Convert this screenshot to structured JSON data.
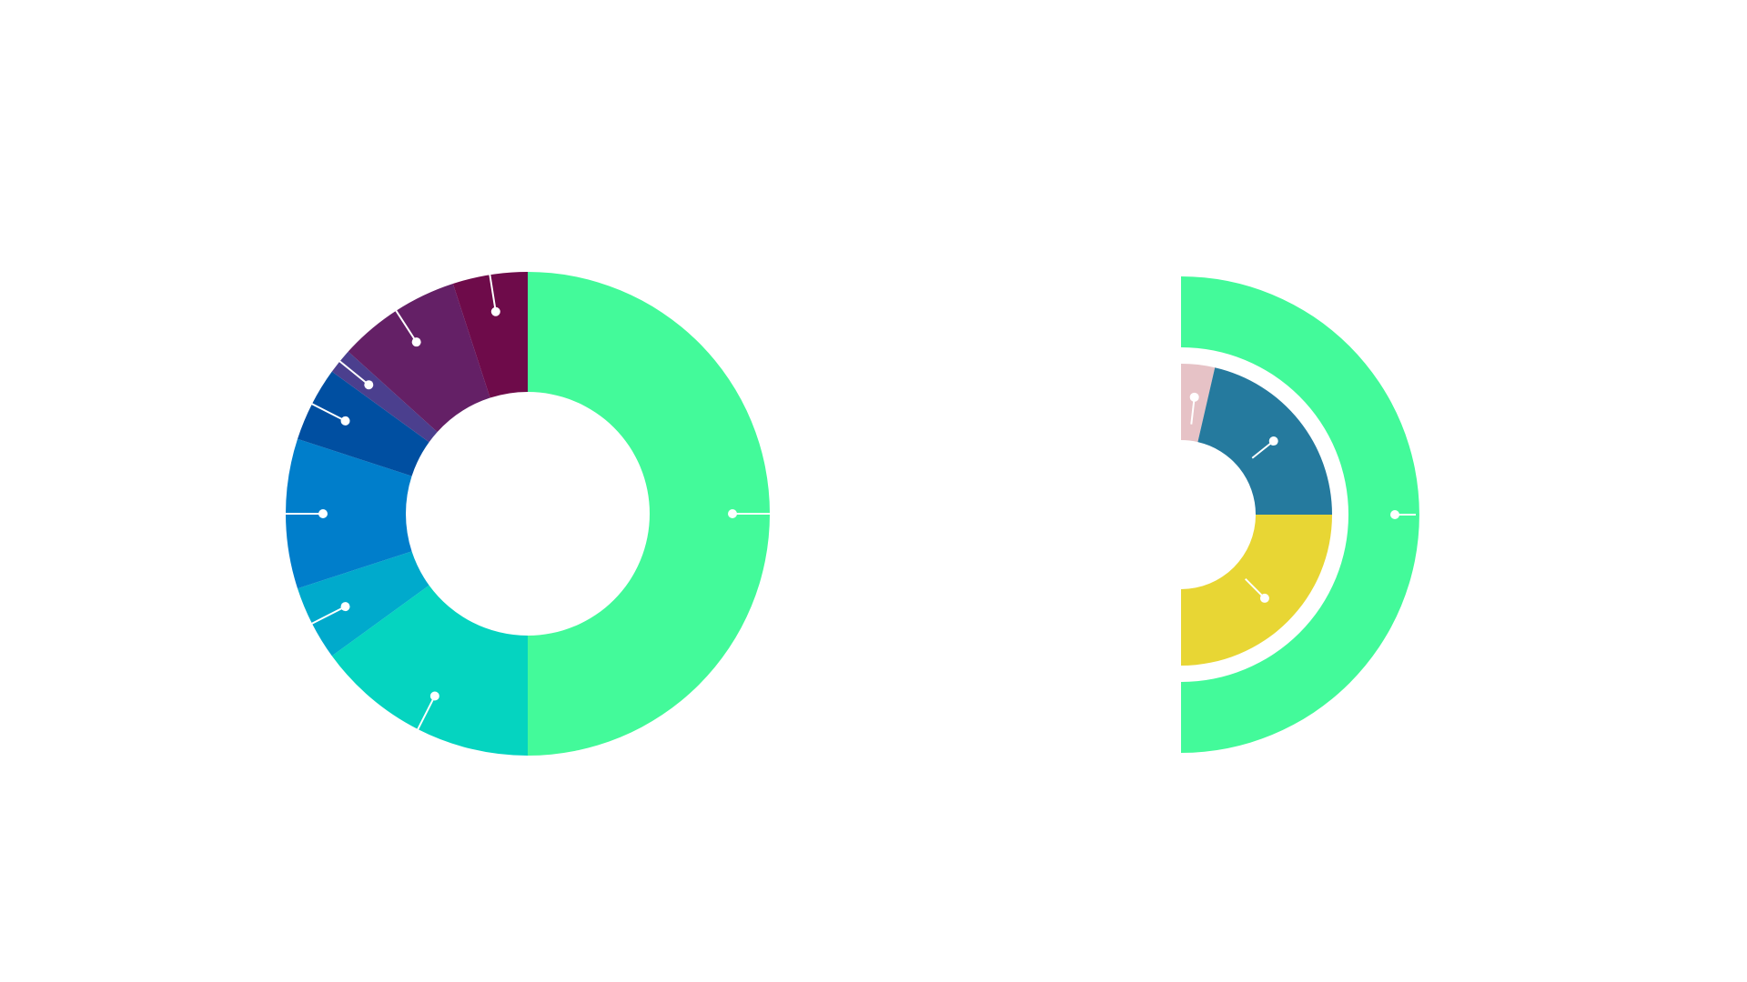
{
  "chart_data": [
    {
      "type": "pie",
      "style": "donut",
      "title": "",
      "legend": "none",
      "colors": [
        "#43fa9a",
        "#05d4c0",
        "#00aacc",
        "#007ecb",
        "#004fa1",
        "#4b3f8e",
        "#642066",
        "#6e0b4a"
      ],
      "values": [
        50,
        15,
        5,
        10,
        5,
        1.7,
        8.3,
        5
      ]
    },
    {
      "type": "pie",
      "style": "nested half-donut",
      "title": "",
      "legend": "none",
      "inner_ring": {
        "colors": [
          "#e6c2c6",
          "#257a9e",
          "#e8d634"
        ],
        "values": [
          3.6,
          21.4,
          25
        ]
      },
      "outer_ring": {
        "colors": [
          "#43fa9a"
        ],
        "values": [
          50
        ]
      }
    }
  ]
}
